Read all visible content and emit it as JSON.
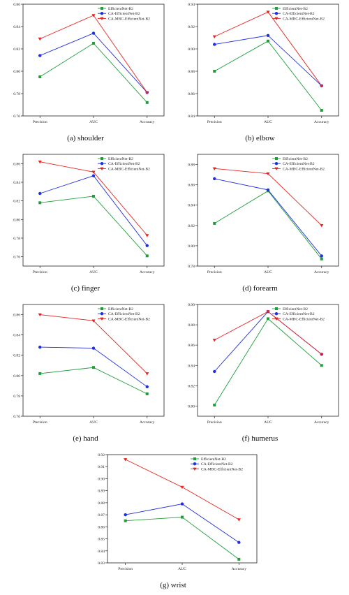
{
  "colors": {
    "efficient": "#1f9e3a",
    "ca": "#1f2fe0",
    "mbc": "#e8221c",
    "axis": "#222222"
  },
  "chart_data": [
    {
      "type": "line",
      "caption": "(a)  shoulder",
      "categories": [
        "Precision",
        "AUC",
        "Accuracy"
      ],
      "ylim": [
        0.76,
        0.86
      ],
      "yticks": [
        "0.76",
        "0.78",
        "0.80",
        "0.82",
        "0.84",
        "0.86"
      ],
      "legend_position": "top-right",
      "series": [
        {
          "name": "EfficientNet-B2",
          "values": [
            0.795,
            0.825,
            0.772
          ]
        },
        {
          "name": "CA-EfficientNet-B2",
          "values": [
            0.814,
            0.834,
            0.781
          ]
        },
        {
          "name": "CA-MBC-EfficientNet-B2",
          "values": [
            0.829,
            0.85,
            0.781
          ]
        }
      ]
    },
    {
      "type": "line",
      "caption": "(b)  elbow",
      "categories": [
        "Precision",
        "AUC",
        "Accuracy"
      ],
      "ylim": [
        0.84,
        0.94
      ],
      "yticks": [
        "0.84",
        "0.86",
        "0.88",
        "0.90",
        "0.92",
        "0.94"
      ],
      "legend_position": "top-right",
      "series": [
        {
          "name": "EfficientNet-B2",
          "values": [
            0.88,
            0.907,
            0.845
          ]
        },
        {
          "name": "CA-EfficientNet-B2",
          "values": [
            0.904,
            0.912,
            0.867
          ]
        },
        {
          "name": "CA-MBC-EfficientNet-B2",
          "values": [
            0.911,
            0.933,
            0.867
          ]
        }
      ]
    },
    {
      "type": "line",
      "caption": "(c)  finger",
      "categories": [
        "Precision",
        "AUC",
        "Accuracy"
      ],
      "ylim": [
        0.75,
        0.87
      ],
      "yticks": [
        "0.76",
        "0.78",
        "0.80",
        "0.82",
        "0.84",
        "0.86"
      ],
      "legend_position": "top-right",
      "series": [
        {
          "name": "EfficientNet-B2",
          "values": [
            0.818,
            0.825,
            0.761
          ]
        },
        {
          "name": "CA-EfficientNet-B2",
          "values": [
            0.828,
            0.847,
            0.772
          ]
        },
        {
          "name": "CA-MBC-EfficientNet-B2",
          "values": [
            0.862,
            0.851,
            0.783
          ]
        }
      ]
    },
    {
      "type": "line",
      "caption": "(d)  forearm",
      "categories": [
        "Precision",
        "AUC",
        "Accuracy"
      ],
      "ylim": [
        0.78,
        0.89
      ],
      "yticks": [
        "0.78",
        "0.80",
        "0.82",
        "0.84",
        "0.86",
        "0.88"
      ],
      "legend_position": "top-right",
      "series": [
        {
          "name": "EfficientNet-B2",
          "values": [
            0.822,
            0.854,
            0.787
          ]
        },
        {
          "name": "CA-EfficientNet-B2",
          "values": [
            0.866,
            0.855,
            0.79
          ]
        },
        {
          "name": "CA-MBC-EfficientNet-B2",
          "values": [
            0.876,
            0.871,
            0.82
          ]
        }
      ]
    },
    {
      "type": "line",
      "caption": "(e)  hand",
      "categories": [
        "Precision",
        "AUC",
        "Accuracy"
      ],
      "ylim": [
        0.76,
        0.87
      ],
      "yticks": [
        "0.76",
        "0.78",
        "0.80",
        "0.82",
        "0.84",
        "0.86"
      ],
      "legend_position": "top-right",
      "series": [
        {
          "name": "EfficientNet-B2",
          "values": [
            0.802,
            0.808,
            0.782
          ]
        },
        {
          "name": "CA-EfficientNet-B2",
          "values": [
            0.828,
            0.827,
            0.789
          ]
        },
        {
          "name": "CA-MBC-EfficientNet-B2",
          "values": [
            0.86,
            0.854,
            0.802
          ]
        }
      ]
    },
    {
      "type": "line",
      "caption": "(f)  humerus",
      "categories": [
        "Precision",
        "AUC",
        "Accuracy"
      ],
      "ylim": [
        0.79,
        0.9
      ],
      "yticks": [
        "0.80",
        "0.82",
        "0.84",
        "0.86",
        "0.88",
        "0.90"
      ],
      "legend_position": "top-right",
      "series": [
        {
          "name": "EfficientNet-B2",
          "values": [
            0.801,
            0.886,
            0.84
          ]
        },
        {
          "name": "CA-EfficientNet-B2",
          "values": [
            0.834,
            0.893,
            0.851
          ]
        },
        {
          "name": "CA-MBC-EfficientNet-B2",
          "values": [
            0.865,
            0.893,
            0.851
          ]
        }
      ]
    },
    {
      "type": "line",
      "caption": "(g)  wrist",
      "categories": [
        "Precision",
        "AUC",
        "Accuracy"
      ],
      "ylim": [
        0.83,
        0.92
      ],
      "yticks": [
        "0.83",
        "0.84",
        "0.85",
        "0.86",
        "0.87",
        "0.88",
        "0.89",
        "0.90",
        "0.91",
        "0.92"
      ],
      "legend_position": "top-right",
      "series": [
        {
          "name": "EfficientNet-B2",
          "values": [
            0.865,
            0.868,
            0.833
          ]
        },
        {
          "name": "CA-EfficientNet-B2",
          "values": [
            0.87,
            0.879,
            0.847
          ]
        },
        {
          "name": "CA-MBC-EfficientNet-B2",
          "values": [
            0.916,
            0.893,
            0.866
          ]
        }
      ]
    }
  ]
}
